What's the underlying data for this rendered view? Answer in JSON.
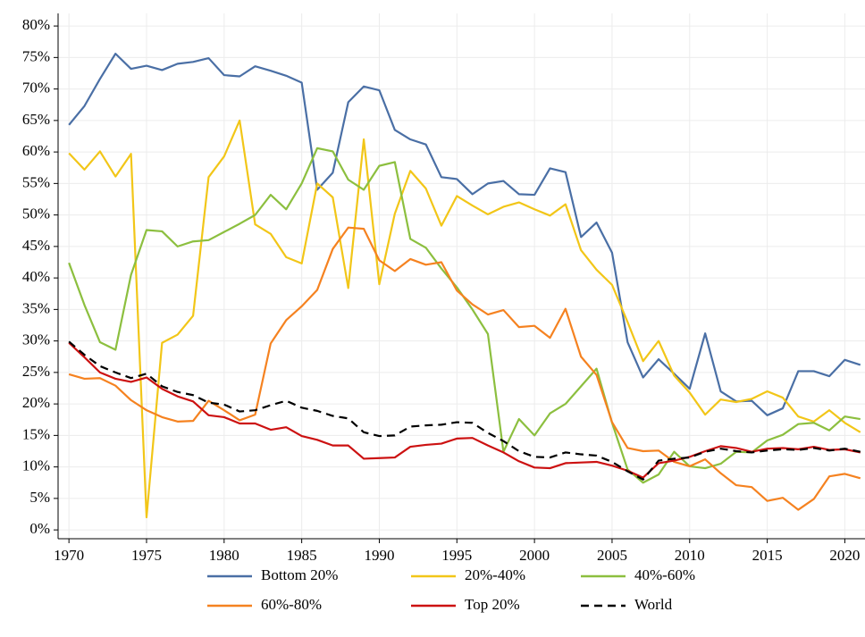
{
  "chart_data": {
    "type": "line",
    "x": [
      1970,
      1971,
      1972,
      1973,
      1974,
      1975,
      1976,
      1977,
      1978,
      1979,
      1980,
      1981,
      1982,
      1983,
      1984,
      1985,
      1986,
      1987,
      1988,
      1989,
      1990,
      1991,
      1992,
      1993,
      1994,
      1995,
      1996,
      1997,
      1998,
      1999,
      2000,
      2001,
      2002,
      2003,
      2004,
      2005,
      2006,
      2007,
      2008,
      2009,
      2010,
      2011,
      2012,
      2013,
      2014,
      2015,
      2016,
      2017,
      2018,
      2019,
      2020,
      2021
    ],
    "xlim": [
      1969.3,
      2021.3
    ],
    "xticks": [
      1970,
      1975,
      1980,
      1985,
      1990,
      1995,
      2000,
      2005,
      2010,
      2015,
      2020
    ],
    "ylim": [
      -1.4,
      82
    ],
    "yticks": [
      {
        "value": 0,
        "label": "0%"
      },
      {
        "value": 5,
        "label": "5%"
      },
      {
        "value": 10,
        "label": "10%"
      },
      {
        "value": 15,
        "label": "15%"
      },
      {
        "value": 20,
        "label": "20%"
      },
      {
        "value": 25,
        "label": "25%"
      },
      {
        "value": 30,
        "label": "30%"
      },
      {
        "value": 35,
        "label": "35%"
      },
      {
        "value": 40,
        "label": "40%"
      },
      {
        "value": 45,
        "label": "45%"
      },
      {
        "value": 50,
        "label": "50%"
      },
      {
        "value": 55,
        "label": "55%"
      },
      {
        "value": 60,
        "label": "60%"
      },
      {
        "value": 65,
        "label": "65%"
      },
      {
        "value": 70,
        "label": "70%"
      },
      {
        "value": 75,
        "label": "75%"
      },
      {
        "value": 80,
        "label": "80%"
      }
    ],
    "grid": true,
    "legend": "bottom",
    "series": [
      {
        "name": "Bottom 20%",
        "color": "#4a6fa5",
        "values": [
          64.3,
          67.3,
          71.6,
          75.6,
          73.2,
          73.7,
          73.0,
          74.0,
          74.3,
          74.9,
          72.2,
          72.0,
          73.6,
          72.9,
          72.1,
          71.0,
          54.0,
          56.7,
          67.9,
          70.4,
          69.8,
          63.5,
          62.0,
          61.2,
          56.0,
          55.7,
          53.3,
          55.0,
          55.4,
          53.3,
          53.2,
          57.4,
          56.8,
          46.5,
          48.8,
          44.0,
          29.8,
          24.2,
          27.1,
          24.8,
          22.4,
          31.2,
          22.0,
          20.4,
          20.5,
          18.2,
          19.3,
          25.2,
          25.2,
          24.4,
          27.0,
          26.2
        ]
      },
      {
        "name": "20%-40%",
        "color": "#f2c618",
        "values": [
          59.8,
          57.2,
          60.1,
          56.1,
          59.7,
          2.0,
          29.7,
          31.0,
          34.0,
          56.0,
          59.3,
          65.0,
          48.5,
          47.0,
          43.3,
          42.3,
          55.0,
          52.8,
          38.4,
          62.0,
          39.0,
          50.2,
          57.0,
          54.2,
          48.3,
          53.0,
          51.5,
          50.1,
          51.3,
          52.0,
          50.9,
          49.9,
          51.7,
          44.4,
          41.3,
          38.9,
          33.0,
          26.8,
          30.0,
          24.5,
          21.8,
          18.3,
          20.7,
          20.3,
          20.8,
          22.0,
          21.0,
          18.0,
          17.2,
          19.0,
          17.0,
          15.5
        ]
      },
      {
        "name": "40%-60%",
        "color": "#8cbf3f",
        "values": [
          42.4,
          35.7,
          29.8,
          28.6,
          40.5,
          47.6,
          47.4,
          45.0,
          45.8,
          46.0,
          47.3,
          48.6,
          50.0,
          53.2,
          50.9,
          55.0,
          60.6,
          60.1,
          55.6,
          54.0,
          57.8,
          58.4,
          46.2,
          44.8,
          41.5,
          38.5,
          35.0,
          31.1,
          12.4,
          17.6,
          15.0,
          18.5,
          20.0,
          22.8,
          25.6,
          17.0,
          9.6,
          7.5,
          8.8,
          12.4,
          10.1,
          9.8,
          10.5,
          12.4,
          12.3,
          14.2,
          15.1,
          16.8,
          17.0,
          15.8,
          18.0,
          17.6
        ]
      },
      {
        "name": "60%-80%",
        "color": "#f58220",
        "values": [
          24.7,
          24.0,
          24.1,
          22.9,
          20.6,
          19.0,
          17.9,
          17.2,
          17.3,
          20.5,
          19.0,
          17.4,
          18.3,
          29.6,
          33.3,
          35.5,
          38.1,
          44.6,
          48.0,
          47.8,
          42.8,
          41.1,
          43.0,
          42.1,
          42.5,
          38.0,
          35.8,
          34.2,
          34.9,
          32.2,
          32.4,
          30.5,
          35.1,
          27.5,
          24.6,
          17.1,
          13.0,
          12.5,
          12.6,
          10.8,
          10.1,
          11.2,
          9.0,
          7.1,
          6.8,
          4.6,
          5.1,
          3.2,
          4.9,
          8.5,
          8.9,
          8.2
        ]
      },
      {
        "name": "Top 20%",
        "color": "#cc1111",
        "values": [
          29.7,
          27.4,
          25.0,
          24.0,
          23.5,
          24.2,
          22.4,
          21.2,
          20.4,
          18.2,
          17.9,
          16.9,
          16.9,
          15.9,
          16.3,
          14.9,
          14.3,
          13.4,
          13.4,
          11.3,
          11.4,
          11.5,
          13.2,
          13.5,
          13.7,
          14.5,
          14.6,
          13.4,
          12.3,
          10.9,
          9.9,
          9.8,
          10.6,
          10.7,
          10.8,
          10.2,
          9.4,
          8.3,
          10.6,
          11.0,
          11.6,
          12.5,
          13.3,
          13.0,
          12.4,
          12.9,
          13.0,
          12.8,
          13.2,
          12.7,
          12.8,
          12.3
        ]
      },
      {
        "name": "World",
        "color": "#000000",
        "dash": true,
        "values": [
          29.9,
          27.8,
          26.0,
          25.0,
          24.1,
          24.8,
          22.8,
          21.9,
          21.4,
          20.2,
          19.9,
          18.8,
          19.0,
          19.8,
          20.5,
          19.4,
          18.9,
          18.1,
          17.7,
          15.5,
          14.9,
          15.0,
          16.4,
          16.6,
          16.7,
          17.1,
          17.0,
          15.4,
          14.1,
          12.5,
          11.6,
          11.5,
          12.3,
          12.0,
          11.8,
          10.8,
          9.3,
          8.0,
          11.0,
          11.3,
          11.5,
          12.4,
          12.9,
          12.5,
          12.3,
          12.6,
          12.8,
          12.7,
          13.0,
          12.6,
          12.9,
          12.4
        ]
      }
    ]
  }
}
